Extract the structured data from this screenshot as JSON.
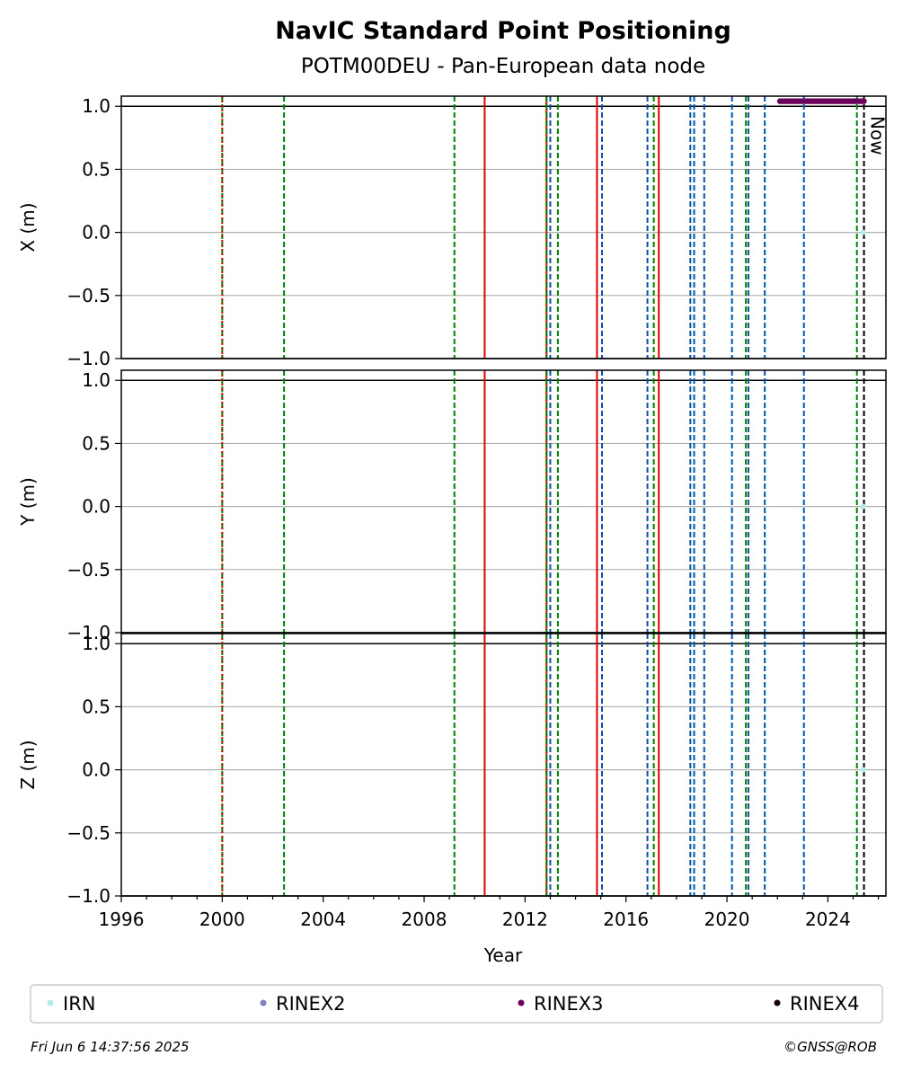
{
  "chart_data": {
    "type": "scatter",
    "title": "NavIC Standard Point Positioning",
    "subtitle": "POTM00DEU - Pan-European data node",
    "xlabel": "Year",
    "xlim": [
      1996.0,
      2026.3
    ],
    "x_ticks": [
      "1996",
      "2000",
      "2004",
      "2008",
      "2012",
      "2016",
      "2020",
      "2024"
    ],
    "x_tick_values": [
      1996,
      2000,
      2004,
      2008,
      2012,
      2016,
      2020,
      2024
    ],
    "ylim": [
      -1.0,
      1.08
    ],
    "y_tick_values": [
      -1.0,
      -0.5,
      0.0,
      0.5,
      1.0
    ],
    "y_tick_labels": [
      "−1.0",
      "−0.5",
      "0.0",
      "0.5",
      "1.0"
    ],
    "grid": "horizontal",
    "panels": [
      {
        "ylabel": "X (m)"
      },
      {
        "ylabel": "Y (m)"
      },
      {
        "ylabel": "Z (m)"
      }
    ],
    "vlines": [
      {
        "x": 2000.0,
        "color": "#008000",
        "style": "dashed"
      },
      {
        "x": 2000.0,
        "color": "#dd0000",
        "style": "dotted"
      },
      {
        "x": 2002.45,
        "color": "#008000",
        "style": "dashed"
      },
      {
        "x": 2009.2,
        "color": "#008000",
        "style": "dashed"
      },
      {
        "x": 2010.4,
        "color": "#dd0000",
        "style": "solid"
      },
      {
        "x": 2012.85,
        "color": "#dd0000",
        "style": "solid"
      },
      {
        "x": 2012.85,
        "color": "#008000",
        "style": "dashed"
      },
      {
        "x": 2013.0,
        "color": "#0055aa",
        "style": "dashed"
      },
      {
        "x": 2013.3,
        "color": "#008000",
        "style": "dashed"
      },
      {
        "x": 2014.85,
        "color": "#dd0000",
        "style": "solid"
      },
      {
        "x": 2015.05,
        "color": "#0055aa",
        "style": "dashed"
      },
      {
        "x": 2016.85,
        "color": "#0055aa",
        "style": "dashed"
      },
      {
        "x": 2017.1,
        "color": "#008000",
        "style": "dashed"
      },
      {
        "x": 2017.3,
        "color": "#dd0000",
        "style": "solid"
      },
      {
        "x": 2018.55,
        "color": "#0055aa",
        "style": "dashed"
      },
      {
        "x": 2018.7,
        "color": "#0055aa",
        "style": "dashed"
      },
      {
        "x": 2019.1,
        "color": "#0055aa",
        "style": "dashed"
      },
      {
        "x": 2020.2,
        "color": "#0055aa",
        "style": "dashed"
      },
      {
        "x": 2020.75,
        "color": "#008000",
        "style": "dashed"
      },
      {
        "x": 2020.85,
        "color": "#0055aa",
        "style": "dashed"
      },
      {
        "x": 2021.5,
        "color": "#0055aa",
        "style": "dashed"
      },
      {
        "x": 2023.05,
        "color": "#0055aa",
        "style": "dashed"
      },
      {
        "x": 2025.15,
        "color": "#008000",
        "style": "dashed"
      },
      {
        "x": 2025.43,
        "color": "#000000",
        "style": "dashed",
        "label": "Now"
      }
    ],
    "series": [
      {
        "name": "IRN",
        "color": "#aeeeee",
        "points": [
          {
            "panel": 0,
            "x": 2025.4,
            "y": 0.0
          },
          {
            "panel": 1,
            "x": 2025.4,
            "y": 0.0
          },
          {
            "panel": 2,
            "x": 2025.4,
            "y": 0.0
          }
        ]
      },
      {
        "name": "RINEX2",
        "color": "#8080c0",
        "points": []
      },
      {
        "name": "RINEX3",
        "color": "#6b005a",
        "x_range": [
          2022.1,
          2025.43
        ],
        "panel": 0,
        "y": 1.04,
        "n_points": 40
      },
      {
        "name": "RINEX4",
        "color": "#1a0000",
        "points": []
      }
    ]
  },
  "legend": [
    "IRN",
    "RINEX2",
    "RINEX3",
    "RINEX4"
  ],
  "footer": {
    "timestamp": "Fri Jun  6 14:37:56 2025",
    "credit": "©GNSS@ROB"
  }
}
